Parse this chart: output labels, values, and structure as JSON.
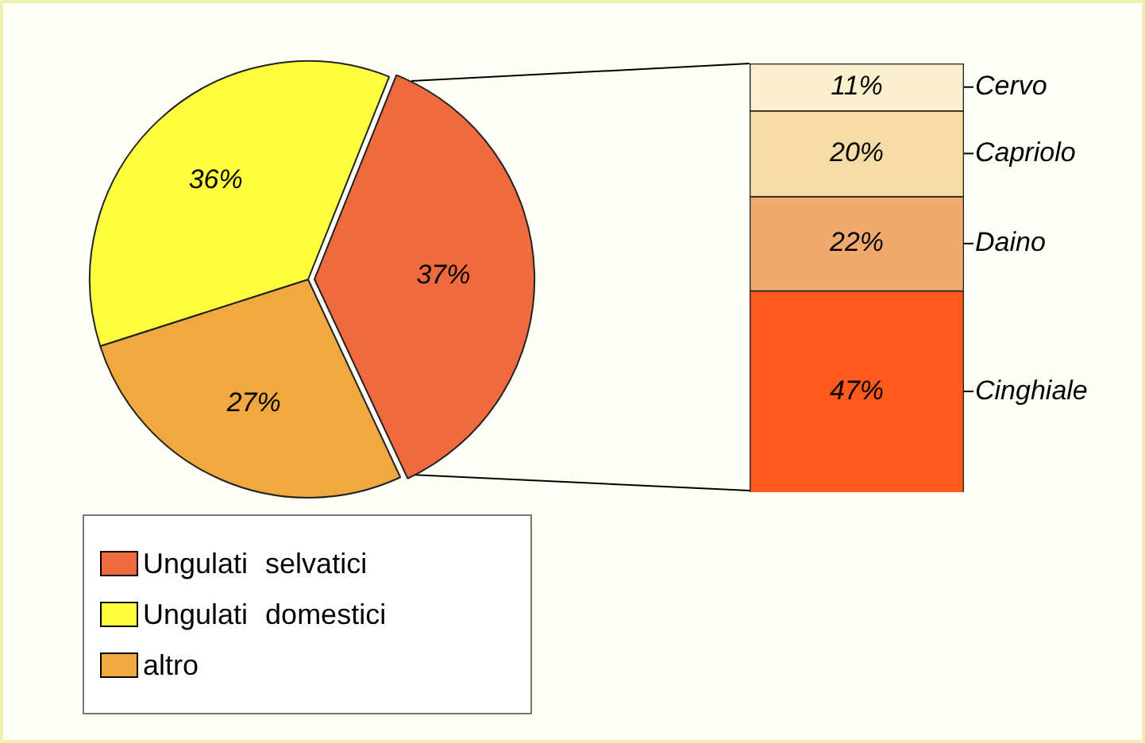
{
  "chart_data": [
    {
      "type": "pie",
      "categories": [
        "Ungulati selvatici",
        "Ungulati domestici",
        "altro"
      ],
      "values": [
        37,
        36,
        27
      ],
      "colors": [
        "#f06a40",
        "#ffff40",
        "#f0a840"
      ],
      "value_labels": [
        "37%",
        "36%",
        "27%"
      ],
      "legend": "bottom left"
    },
    {
      "type": "bar",
      "stacked": true,
      "categories": [
        null
      ],
      "tick_labels": false,
      "series": [
        {
          "name": "Cinghiale",
          "color": "#ff5a1e",
          "values": [
            47
          ],
          "value_labels": [
            "47%"
          ]
        },
        {
          "name": "Daino",
          "color": "#f0aa6e",
          "values": [
            22
          ],
          "value_labels": [
            "22%"
          ]
        },
        {
          "name": "Capriolo",
          "color": "#f6dca6",
          "values": [
            20
          ],
          "value_labels": [
            "20%"
          ]
        },
        {
          "name": "Cervo",
          "color": "#fcefcf",
          "values": [
            11
          ],
          "value_labels": [
            "11%"
          ]
        }
      ]
    }
  ]
}
